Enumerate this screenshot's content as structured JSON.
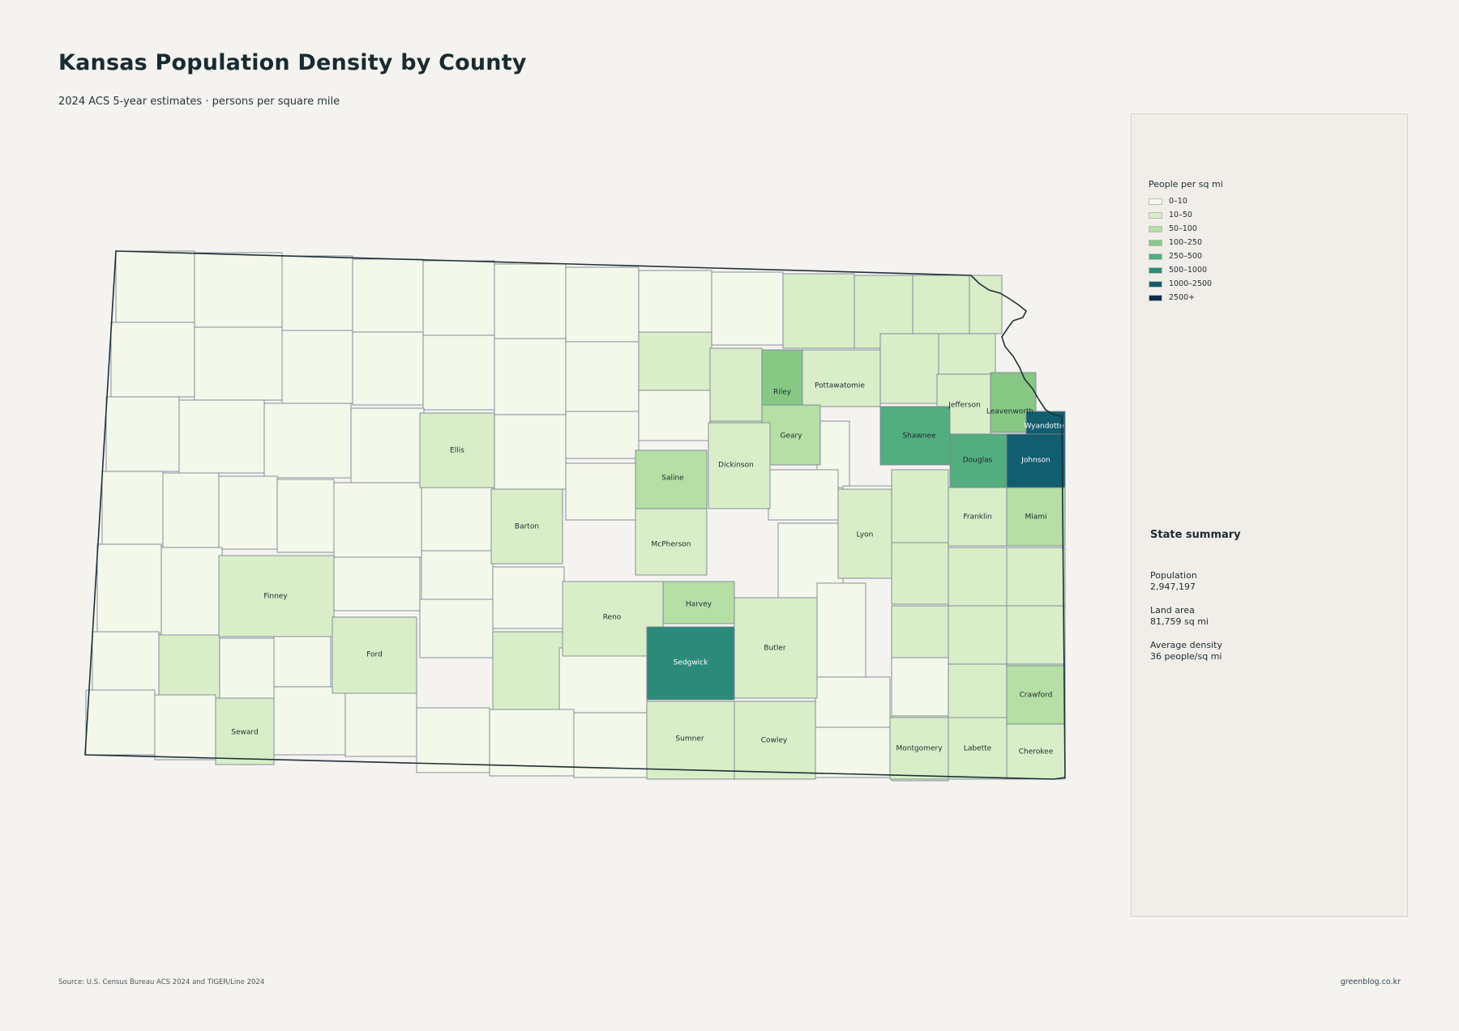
{
  "page": {
    "title": "Kansas Population Density by County",
    "subtitle": "2024 ACS 5-year estimates · persons per square mile",
    "source": "Source: U.S. Census Bureau ACS 2024 and TIGER/Line 2024",
    "credit": "greenblog.co.kr"
  },
  "legend": {
    "title": "People per sq mi",
    "items": [
      {
        "label": "0–10",
        "color": "#f4f8ea"
      },
      {
        "label": "10–50",
        "color": "#d9eec8"
      },
      {
        "label": "50–100",
        "color": "#b5dfa5"
      },
      {
        "label": "100–250",
        "color": "#86c884"
      },
      {
        "label": "250–500",
        "color": "#52ad7f"
      },
      {
        "label": "500–1000",
        "color": "#2b8a7a"
      },
      {
        "label": "1000–2500",
        "color": "#125d70"
      },
      {
        "label": "2500+",
        "color": "#0b2d4a"
      }
    ]
  },
  "summary": {
    "heading": "State summary",
    "stats": [
      {
        "label": "Population",
        "value": "2,947,197"
      },
      {
        "label": "Land area",
        "value": "81,759 sq mi"
      },
      {
        "label": "Average density",
        "value": "36 people/sq mi"
      }
    ]
  },
  "counties": [
    {
      "name": "Riley",
      "class": "100–250",
      "color": "#86c884"
    },
    {
      "name": "Pottawatomie",
      "class": "10–50",
      "color": "#d9eec8"
    },
    {
      "name": "Jefferson",
      "class": "10–50",
      "color": "#d9eec8"
    },
    {
      "name": "Leavenworth",
      "class": "100–250",
      "color": "#86c884"
    },
    {
      "name": "Wyandotte",
      "class": "1000–2500",
      "color": "#125d70"
    },
    {
      "name": "Geary",
      "class": "50–100",
      "color": "#b5dfa5"
    },
    {
      "name": "Shawnee",
      "class": "250–500",
      "color": "#52ad7f"
    },
    {
      "name": "Ellis",
      "class": "10–50",
      "color": "#d9eec8"
    },
    {
      "name": "Saline",
      "class": "50–100",
      "color": "#b5dfa5"
    },
    {
      "name": "Dickinson",
      "class": "10–50",
      "color": "#d9eec8"
    },
    {
      "name": "Douglas",
      "class": "250–500",
      "color": "#52ad7f"
    },
    {
      "name": "Johnson",
      "class": "1000–2500",
      "color": "#125d70"
    },
    {
      "name": "Barton",
      "class": "10–50",
      "color": "#d9eec8"
    },
    {
      "name": "Lyon",
      "class": "10–50",
      "color": "#d9eec8"
    },
    {
      "name": "Franklin",
      "class": "10–50",
      "color": "#d9eec8"
    },
    {
      "name": "Miami",
      "class": "50–100",
      "color": "#b5dfa5"
    },
    {
      "name": "McPherson",
      "class": "10–50",
      "color": "#d9eec8"
    },
    {
      "name": "Finney",
      "class": "10–50",
      "color": "#d9eec8"
    },
    {
      "name": "Harvey",
      "class": "50–100",
      "color": "#b5dfa5"
    },
    {
      "name": "Reno",
      "class": "10–50",
      "color": "#d9eec8"
    },
    {
      "name": "Butler",
      "class": "10–50",
      "color": "#d9eec8"
    },
    {
      "name": "Ford",
      "class": "10–50",
      "color": "#d9eec8"
    },
    {
      "name": "Sedgwick",
      "class": "500–1000",
      "color": "#2b8a7a"
    },
    {
      "name": "Crawford",
      "class": "50–100",
      "color": "#b5dfa5"
    },
    {
      "name": "Seward",
      "class": "10–50",
      "color": "#d9eec8"
    },
    {
      "name": "Sumner",
      "class": "10–50",
      "color": "#d9eec8"
    },
    {
      "name": "Cowley",
      "class": "10–50",
      "color": "#d9eec8"
    },
    {
      "name": "Montgomery",
      "class": "10–50",
      "color": "#d9eec8"
    },
    {
      "name": "Labette",
      "class": "10–50",
      "color": "#d9eec8"
    },
    {
      "name": "Cherokee",
      "class": "10–50",
      "color": "#d9eec8"
    }
  ],
  "unlabeled_county_fills": {
    "low": "#f4f8ea",
    "mid": "#d9eec8",
    "midhigh": "#b5dfa5"
  }
}
